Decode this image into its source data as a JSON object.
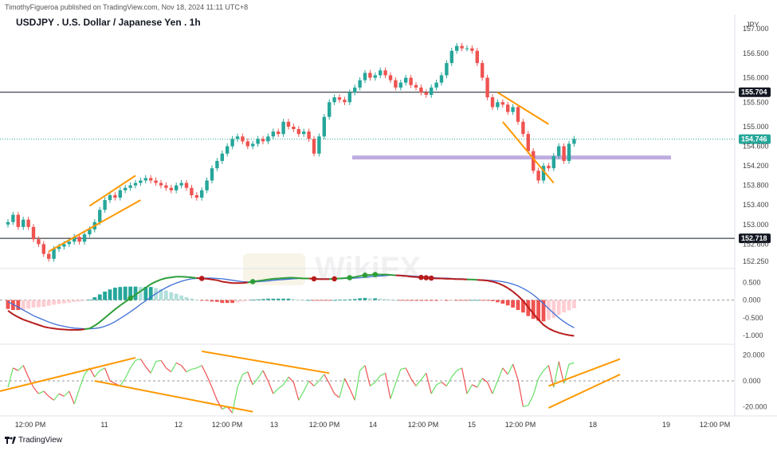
{
  "header": {
    "published_by": "TimothyFigueroa published on TradingView.com, Nov 18, 2024 11:11 UTC+8",
    "symbol_title": "USDJPY . U.S. Dollar / Japanese Yen . 1h",
    "currency": "JPY",
    "watermark": "WikiFX"
  },
  "footer": {
    "brand": "TradingView"
  },
  "colors": {
    "up": "#26a69a",
    "down": "#ef5350",
    "orange": "#ff9800",
    "zone": "#b39ddb",
    "macd_fast": "#2e9e3a",
    "macd_signal": "#3f6fd6",
    "macd_red": "#b71c1c",
    "rsi_up": "#66e066",
    "rsi_down": "#f05050",
    "current_price_bg": "#26a69a",
    "level_bg": "#131722"
  },
  "chart_data": [
    {
      "type": "candlestick",
      "title": "USDJPY . U.S. Dollar / Japanese Yen . 1h",
      "y_axis_ticks": [
        "157.000",
        "156.500",
        "156.000",
        "155.500",
        "155.000",
        "154.600",
        "154.200",
        "153.800",
        "153.400",
        "153.000",
        "152.600",
        "152.250"
      ],
      "ylim": [
        152.15,
        157.1
      ],
      "x_axis_ticks": [
        "12:00 PM",
        "11",
        "12",
        "12:00 PM",
        "13",
        "12:00 PM",
        "14",
        "12:00 PM",
        "15",
        "12:00 PM",
        "18",
        "19",
        "12:00 PM"
      ],
      "close": [
        153.05,
        153.2,
        152.95,
        153.1,
        152.95,
        152.7,
        152.6,
        152.4,
        152.3,
        152.5,
        152.55,
        152.6,
        152.65,
        152.75,
        152.65,
        152.8,
        152.9,
        153.05,
        153.3,
        153.5,
        153.6,
        153.55,
        153.7,
        153.75,
        153.8,
        153.85,
        153.9,
        153.95,
        153.9,
        153.85,
        153.8,
        153.75,
        153.7,
        153.8,
        153.85,
        153.75,
        153.6,
        153.55,
        153.7,
        153.9,
        154.15,
        154.3,
        154.45,
        154.6,
        154.75,
        154.8,
        154.7,
        154.6,
        154.65,
        154.75,
        154.7,
        154.8,
        154.9,
        154.85,
        155.1,
        155.0,
        154.95,
        154.85,
        154.9,
        154.75,
        154.45,
        154.8,
        155.2,
        155.5,
        155.6,
        155.55,
        155.5,
        155.7,
        155.8,
        155.95,
        156.1,
        156.0,
        156.05,
        156.15,
        156.05,
        155.95,
        155.8,
        155.9,
        156.0,
        155.85,
        155.8,
        155.7,
        155.65,
        155.8,
        155.9,
        156.05,
        156.3,
        156.55,
        156.65,
        156.6,
        156.6,
        156.55,
        156.3,
        156.0,
        155.6,
        155.4,
        155.5,
        155.45,
        155.3,
        155.4,
        155.1,
        154.85,
        154.5,
        154.1,
        153.9,
        154.2,
        154.15,
        154.4,
        154.6,
        154.3,
        154.65,
        154.75
      ],
      "levels": [
        {
          "value": 155.704,
          "label": "155.704"
        },
        {
          "value": 152.718,
          "label": "152.718"
        }
      ],
      "current_price": {
        "value": 154.746,
        "label": "154.746"
      },
      "support_zone": [
        154.33,
        154.41
      ],
      "trendlines": [
        {
          "name": "wedge-1-lower",
          "points": [
            [
              8,
              152.45
            ],
            [
              26,
              153.5
            ]
          ]
        },
        {
          "name": "wedge-1-upper",
          "points": [
            [
              16,
              153.38
            ],
            [
              25,
              154.0
            ]
          ]
        },
        {
          "name": "wedge-2-upper",
          "points": [
            [
              96,
              155.7
            ],
            [
              106,
              155.05
            ]
          ]
        },
        {
          "name": "wedge-2-lower",
          "points": [
            [
              97,
              155.1
            ],
            [
              107,
              153.85
            ]
          ]
        }
      ]
    },
    {
      "type": "line",
      "name": "MACD",
      "y_axis_ticks": [
        "0.500",
        "0.000",
        "-0.500",
        "-1.000"
      ],
      "ylim": [
        -1.2,
        0.8
      ],
      "macd": [
        -0.3,
        -0.4,
        -0.48,
        -0.55,
        -0.6,
        -0.65,
        -0.7,
        -0.75,
        -0.78,
        -0.8,
        -0.82,
        -0.83,
        -0.84,
        -0.84,
        -0.84,
        -0.82,
        -0.8,
        -0.72,
        -0.62,
        -0.5,
        -0.38,
        -0.26,
        -0.15,
        -0.05,
        0.05,
        0.15,
        0.25,
        0.35,
        0.45,
        0.52,
        0.58,
        0.62,
        0.64,
        0.66,
        0.66,
        0.65,
        0.64,
        0.62,
        0.61,
        0.6,
        0.58,
        0.56,
        0.52,
        0.5,
        0.48,
        0.48,
        0.48,
        0.5,
        0.52,
        0.54,
        0.56,
        0.58,
        0.6,
        0.61,
        0.62,
        0.63,
        0.63,
        0.62,
        0.61,
        0.61,
        0.6,
        0.59,
        0.59,
        0.59,
        0.6,
        0.61,
        0.62,
        0.63,
        0.65,
        0.68,
        0.7,
        0.71,
        0.72,
        0.72,
        0.72,
        0.71,
        0.7,
        0.69,
        0.68,
        0.66,
        0.65,
        0.64,
        0.63,
        0.62,
        0.61,
        0.61,
        0.6,
        0.6,
        0.59,
        0.59,
        0.58,
        0.58,
        0.57,
        0.56,
        0.55,
        0.52,
        0.48,
        0.42,
        0.34,
        0.24,
        0.12,
        -0.02,
        -0.2,
        -0.38,
        -0.55,
        -0.7,
        -0.8,
        -0.87,
        -0.92,
        -0.96,
        -0.99,
        -1.01
      ],
      "signal": [
        -0.05,
        -0.12,
        -0.2,
        -0.28,
        -0.36,
        -0.44,
        -0.5,
        -0.56,
        -0.62,
        -0.67,
        -0.71,
        -0.74,
        -0.77,
        -0.79,
        -0.8,
        -0.81,
        -0.81,
        -0.8,
        -0.78,
        -0.74,
        -0.68,
        -0.61,
        -0.52,
        -0.43,
        -0.33,
        -0.23,
        -0.12,
        -0.02,
        0.08,
        0.18,
        0.27,
        0.35,
        0.42,
        0.48,
        0.53,
        0.57,
        0.6,
        0.61,
        0.62,
        0.62,
        0.62,
        0.61,
        0.6,
        0.58,
        0.56,
        0.54,
        0.52,
        0.51,
        0.51,
        0.52,
        0.53,
        0.54,
        0.56,
        0.57,
        0.58,
        0.59,
        0.6,
        0.61,
        0.61,
        0.61,
        0.61,
        0.6,
        0.6,
        0.6,
        0.6,
        0.6,
        0.61,
        0.61,
        0.62,
        0.63,
        0.64,
        0.66,
        0.67,
        0.68,
        0.69,
        0.7,
        0.7,
        0.7,
        0.69,
        0.68,
        0.67,
        0.66,
        0.65,
        0.64,
        0.63,
        0.62,
        0.62,
        0.61,
        0.6,
        0.6,
        0.59,
        0.58,
        0.57,
        0.57,
        0.56,
        0.55,
        0.54,
        0.52,
        0.49,
        0.45,
        0.4,
        0.33,
        0.25,
        0.15,
        0.03,
        -0.1,
        -0.24,
        -0.37,
        -0.5,
        -0.61,
        -0.7,
        -0.78
      ],
      "hist": [
        -0.25,
        -0.28,
        -0.28,
        -0.27,
        -0.24,
        -0.21,
        -0.2,
        -0.19,
        -0.16,
        -0.13,
        -0.11,
        -0.09,
        -0.07,
        -0.05,
        -0.04,
        -0.01,
        0.01,
        0.08,
        0.16,
        0.24,
        0.3,
        0.35,
        0.37,
        0.38,
        0.38,
        0.38,
        0.37,
        0.37,
        0.37,
        0.34,
        0.31,
        0.27,
        0.22,
        0.18,
        0.13,
        0.08,
        0.04,
        0.01,
        -0.01,
        -0.02,
        -0.04,
        -0.05,
        -0.08,
        -0.08,
        -0.08,
        -0.06,
        -0.04,
        -0.01,
        0.01,
        0.02,
        0.03,
        0.04,
        0.04,
        0.04,
        0.04,
        0.04,
        0.03,
        0.01,
        0.0,
        0.0,
        -0.01,
        -0.01,
        -0.01,
        -0.01,
        0.0,
        0.01,
        0.01,
        0.02,
        0.03,
        0.05,
        0.06,
        0.05,
        0.05,
        0.04,
        0.03,
        0.01,
        0.0,
        -0.01,
        -0.01,
        -0.02,
        -0.02,
        -0.02,
        -0.02,
        -0.02,
        -0.02,
        -0.01,
        -0.02,
        -0.01,
        -0.01,
        -0.01,
        -0.01,
        0.0,
        0.0,
        -0.01,
        -0.01,
        -0.03,
        -0.06,
        -0.1,
        -0.15,
        -0.21,
        -0.28,
        -0.35,
        -0.45,
        -0.53,
        -0.58,
        -0.6,
        -0.56,
        -0.5,
        -0.42,
        -0.35,
        -0.29,
        -0.23
      ],
      "cross_markers": [
        {
          "i": 24,
          "color": "#2e9e3a"
        },
        {
          "i": 38,
          "color": "#b71c1c"
        },
        {
          "i": 48,
          "color": "#2e9e3a"
        },
        {
          "i": 60,
          "color": "#b71c1c"
        },
        {
          "i": 64,
          "color": "#b71c1c"
        },
        {
          "i": 67,
          "color": "#2e9e3a"
        },
        {
          "i": 70,
          "color": "#2e9e3a"
        },
        {
          "i": 72,
          "color": "#2e9e3a"
        },
        {
          "i": 81,
          "color": "#b71c1c"
        },
        {
          "i": 82,
          "color": "#b71c1c"
        },
        {
          "i": 83,
          "color": "#b71c1c"
        }
      ]
    },
    {
      "type": "line",
      "name": "Oscillator",
      "y_axis_ticks": [
        "20.000",
        "0.000",
        "-20.000"
      ],
      "ylim": [
        -26,
        26
      ],
      "values": [
        -5,
        10,
        8,
        12,
        3,
        -5,
        -10,
        -8,
        -12,
        -15,
        -10,
        -12,
        -8,
        -18,
        -6,
        5,
        10,
        3,
        8,
        10,
        0,
        -2,
        -4,
        2,
        10,
        16,
        17,
        11,
        6,
        15,
        16,
        10,
        7,
        14,
        12,
        7,
        9,
        10,
        12,
        4,
        -5,
        -15,
        -22,
        -20,
        -25,
        -5,
        5,
        7,
        -3,
        2,
        8,
        0,
        -10,
        -6,
        -3,
        3,
        -1,
        -15,
        -8,
        0,
        -4,
        0,
        5,
        -2,
        -10,
        -13,
        2,
        -6,
        -15,
        8,
        12,
        -4,
        -1,
        4,
        6,
        -14,
        -2,
        9,
        10,
        2,
        -4,
        1,
        6,
        -10,
        -3,
        -1,
        -4,
        3,
        8,
        10,
        -10,
        -3,
        -5,
        2,
        -1,
        -10,
        0,
        10,
        5,
        13,
        1,
        -20,
        -19,
        -11,
        2,
        8,
        12,
        -5,
        15,
        -2,
        13,
        14
      ],
      "trendlines": [
        {
          "name": "osc-line-1",
          "points": [
            [
              0,
              -8
            ],
            [
              25,
              18
            ]
          ]
        },
        {
          "name": "osc-line-2",
          "points": [
            [
              17,
              0
            ],
            [
              48,
              -24
            ]
          ]
        },
        {
          "name": "osc-line-3",
          "points": [
            [
              38,
              23
            ],
            [
              63,
              6
            ]
          ]
        },
        {
          "name": "osc-line-4",
          "points": [
            [
              106,
              -21
            ],
            [
              120,
              5
            ]
          ]
        },
        {
          "name": "osc-line-5",
          "points": [
            [
              106,
              -4
            ],
            [
              120,
              17
            ]
          ]
        }
      ]
    }
  ]
}
